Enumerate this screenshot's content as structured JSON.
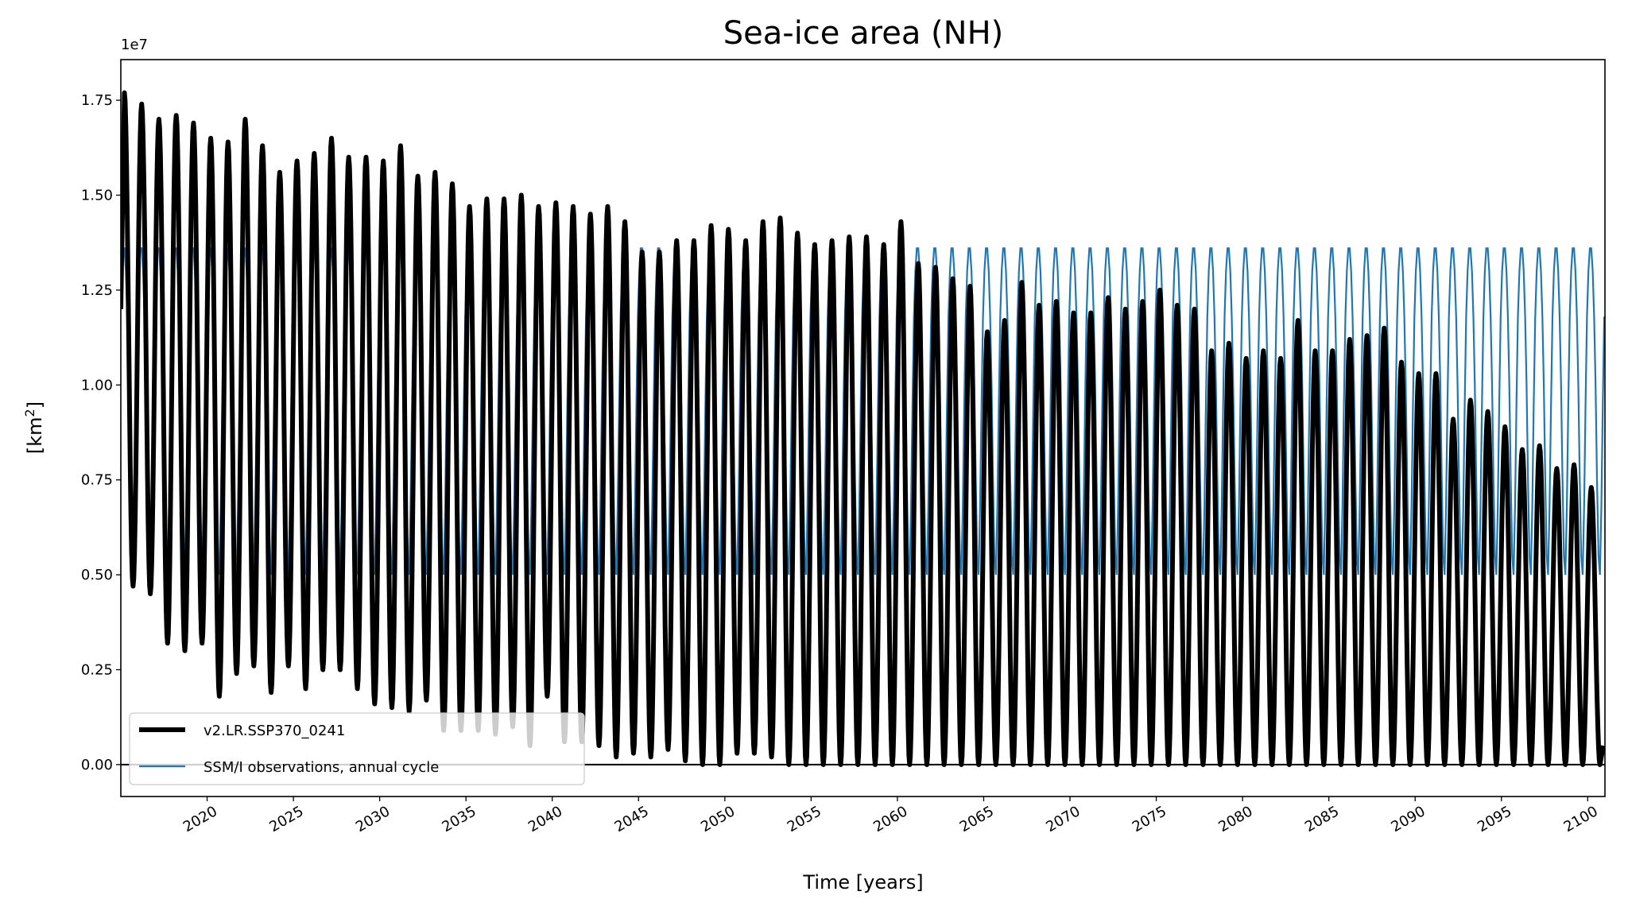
{
  "chart_data": {
    "type": "line",
    "title": "Sea-ice area (NH)",
    "xlabel": "Time [years]",
    "ylabel": "[km",
    "ylabel_sup": "2",
    "ylabel_end": "]",
    "y_offset_label": "1e7",
    "y_units_multiplier": 10000000,
    "xlim": [
      2015,
      2101
    ],
    "ylim": [
      -0.084,
      1.857
    ],
    "xticks": [
      2020,
      2025,
      2030,
      2035,
      2040,
      2045,
      2050,
      2055,
      2060,
      2065,
      2070,
      2075,
      2080,
      2085,
      2090,
      2095,
      2100
    ],
    "yticks": [
      0.0,
      0.25,
      0.5,
      0.75,
      1.0,
      1.25,
      1.5,
      1.75
    ],
    "ytick_labels": [
      "0.00",
      "0.25",
      "0.50",
      "0.75",
      "1.00",
      "1.25",
      "1.50",
      "1.75"
    ],
    "grid": false,
    "legend_position": "lower-left",
    "series": [
      {
        "name": "v2.LR.SSP370_0241",
        "color": "#000000",
        "description_units": "1e7 km2",
        "years": [
          2015,
          2100
        ],
        "annual_max_march": [
          1.77,
          1.74,
          1.7,
          1.71,
          1.69,
          1.65,
          1.64,
          1.7,
          1.63,
          1.56,
          1.59,
          1.61,
          1.65,
          1.6,
          1.6,
          1.59,
          1.63,
          1.55,
          1.56,
          1.53,
          1.47,
          1.49,
          1.49,
          1.5,
          1.47,
          1.48,
          1.47,
          1.45,
          1.47,
          1.43,
          1.35,
          1.35,
          1.38,
          1.38,
          1.42,
          1.41,
          1.38,
          1.43,
          1.44,
          1.4,
          1.37,
          1.38,
          1.39,
          1.39,
          1.37,
          1.43,
          1.32,
          1.31,
          1.28,
          1.26,
          1.14,
          1.17,
          1.27,
          1.21,
          1.22,
          1.19,
          1.19,
          1.23,
          1.2,
          1.22,
          1.25,
          1.21,
          1.2,
          1.09,
          1.11,
          1.07,
          1.09,
          1.07,
          1.17,
          1.09,
          1.09,
          1.12,
          1.13,
          1.15,
          1.06,
          1.03,
          1.03,
          0.91,
          0.96,
          0.93,
          0.89,
          0.83,
          0.84,
          0.78,
          0.79,
          0.73
        ],
        "annual_min_september": [
          0.47,
          0.45,
          0.32,
          0.3,
          0.32,
          0.18,
          0.24,
          0.26,
          0.19,
          0.26,
          0.2,
          0.25,
          0.25,
          0.2,
          0.16,
          0.15,
          0.14,
          0.17,
          0.09,
          0.09,
          0.09,
          0.08,
          0.1,
          0.05,
          0.18,
          0.06,
          0.06,
          0.05,
          0.02,
          0.03,
          0.02,
          0.04,
          0.01,
          0.0,
          0.0,
          0.03,
          0.03,
          0.02,
          0.0,
          0.0,
          0.0,
          0.0,
          0.0,
          0.0,
          0.0,
          0.0,
          0.0,
          0.0,
          0.0,
          0.0,
          0.0,
          0.0,
          0.0,
          0.0,
          0.0,
          0.0,
          0.0,
          0.0,
          0.0,
          0.0,
          0.0,
          0.0,
          0.0,
          0.0,
          0.0,
          0.0,
          0.0,
          0.0,
          0.0,
          0.0,
          0.0,
          0.0,
          0.0,
          0.0,
          0.0,
          0.0,
          0.0,
          0.0,
          0.0,
          0.0,
          0.0,
          0.0,
          0.0,
          0.0,
          0.0,
          0.0
        ]
      },
      {
        "name": "SSM/I observations, annual cycle",
        "color": "#1f77b4",
        "monthly_climatology": [
          1.3,
          1.36,
          1.36,
          1.3,
          1.18,
          1.0,
          0.75,
          0.55,
          0.5,
          0.68,
          0.95,
          1.18
        ]
      }
    ],
    "hline": 0
  }
}
